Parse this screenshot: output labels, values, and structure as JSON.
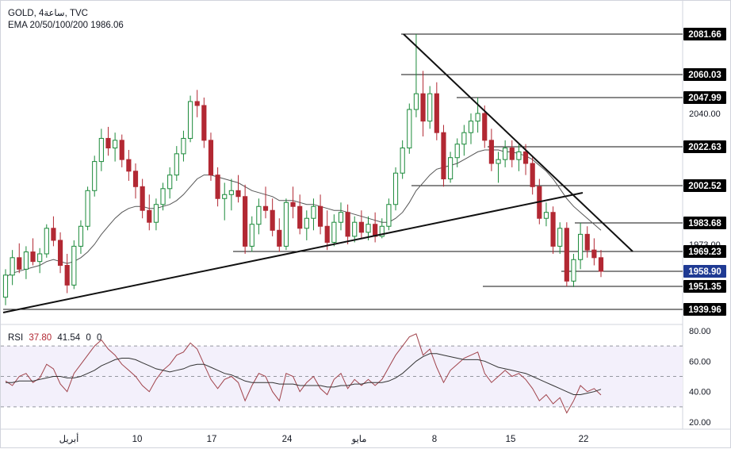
{
  "header": {
    "symbol_line": "GOLD, 4ساعة, TVC",
    "ema_line": "EMA 20/50/100/200  1986.06",
    "rsi_label": "RSI",
    "rsi_value_1": "37.80",
    "rsi_value_2": "41.54",
    "rsi_value_3": "0",
    "rsi_value_4": "0"
  },
  "colors": {
    "up": "#1b8a3a",
    "down": "#b22833",
    "ema": "#555555",
    "rsi": "#a0424a",
    "rsi_ma": "#333333",
    "trend": "#111111",
    "level": "#111111",
    "current_price_bg": "#1f3a93"
  },
  "chart_data": [
    {
      "type": "candlestick",
      "title": "",
      "price_axis_ticks": [
        "2040.00",
        "1973.00"
      ],
      "time_axis_labels": [
        "أبريل",
        "10",
        "17",
        "24",
        "مايو",
        "8",
        "15",
        "22"
      ],
      "ylim": [
        1935,
        2088
      ],
      "levels": [
        {
          "label": "2081.66",
          "value": 2081.66,
          "x_from": "مايو 5"
        },
        {
          "label": "2060.03",
          "value": 2060.03,
          "x_from": "مايو 5"
        },
        {
          "label": "2047.99",
          "value": 2047.99,
          "x_from": "مايو 9"
        },
        {
          "label": "2022.63",
          "value": 2022.63,
          "x_from": "مايو 11"
        },
        {
          "label": "2002.52",
          "value": 2002.52,
          "x_from": "مايو 7"
        },
        {
          "label": "1983.68",
          "value": 1983.68,
          "x_from": "مايو 20"
        },
        {
          "label": "1969.23",
          "value": 1969.23,
          "x_from": "أبريل 20"
        },
        {
          "label": "1958.90",
          "value": 1958.9,
          "x_from": "مايو 19",
          "current": true
        },
        {
          "label": "1951.35",
          "value": 1951.35,
          "x_from": "مايو 17"
        },
        {
          "label": "1939.96",
          "value": 1939.96,
          "x_from": "مارس 31"
        }
      ],
      "trendlines": [
        {
          "name": "descending",
          "from": {
            "x": "مايو 5",
            "y": 2081.66
          },
          "to": {
            "x": "مايو 24",
            "y": 1969.23
          }
        },
        {
          "name": "ascending",
          "from": {
            "x": "مارس 31",
            "y": 1940.8
          },
          "to": {
            "x": "مايو 21",
            "y": 1997.5
          }
        }
      ],
      "ohlc": [
        [
          1946.0,
          1960.0,
          1942.0,
          1957.0
        ],
        [
          1957.0,
          1970.0,
          1952.0,
          1966.0
        ],
        [
          1966.0,
          1973.5,
          1958.0,
          1960.0
        ],
        [
          1960.0,
          1972.0,
          1955.0,
          1969.0
        ],
        [
          1969.0,
          1976.0,
          1962.0,
          1964.0
        ],
        [
          1964.0,
          1971.0,
          1958.0,
          1968.0
        ],
        [
          1968.0,
          1983.0,
          1966.0,
          1981.0
        ],
        [
          1981.0,
          1987.0,
          1972.0,
          1975.0
        ],
        [
          1975.0,
          1979.0,
          1958.0,
          1962.0
        ],
        [
          1962.0,
          1968.0,
          1948.0,
          1952.0
        ],
        [
          1952.0,
          1975.0,
          1950.0,
          1972.0
        ],
        [
          1972.0,
          1985.0,
          1968.0,
          1982.0
        ],
        [
          1982.0,
          2002.0,
          1980.0,
          2000.0
        ],
        [
          2000.0,
          2018.0,
          1997.0,
          2015.0
        ],
        [
          2015.0,
          2032.0,
          2010.0,
          2027.0
        ],
        [
          2027.0,
          2033.0,
          2018.0,
          2022.0
        ],
        [
          2022.0,
          2030.0,
          2015.0,
          2026.0
        ],
        [
          2026.0,
          2029.0,
          2012.0,
          2016.0
        ],
        [
          2016.0,
          2021.0,
          2005.0,
          2010.0
        ],
        [
          2010.0,
          2014.0,
          1996.0,
          2002.0
        ],
        [
          2002.0,
          2006.0,
          1986.0,
          1990.0
        ],
        [
          1990.0,
          1998.0,
          1980.0,
          1984.0
        ],
        [
          1984.0,
          1996.0,
          1980.0,
          1993.0
        ],
        [
          1993.0,
          2004.0,
          1990.0,
          2001.0
        ],
        [
          2001.0,
          2012.0,
          1996.0,
          2008.0
        ],
        [
          2008.0,
          2023.0,
          2005.0,
          2019.0
        ],
        [
          2019.0,
          2031.0,
          2015.0,
          2027.0
        ],
        [
          2027.0,
          2049.0,
          2025.0,
          2046.0
        ],
        [
          2046.0,
          2052.0,
          2038.0,
          2044.0
        ],
        [
          2044.0,
          2048.0,
          2022.0,
          2026.0
        ],
        [
          2026.0,
          2030.0,
          2005.0,
          2008.0
        ],
        [
          2008.0,
          2012.0,
          1992.0,
          1996.0
        ],
        [
          1996.0,
          2004.0,
          1985.0,
          1998.0
        ],
        [
          1998.0,
          2006.0,
          1990.0,
          2000.0
        ],
        [
          2000.0,
          2008.0,
          1994.0,
          1997.0
        ],
        [
          1997.0,
          2003.0,
          1968.0,
          1972.0
        ],
        [
          1972.0,
          1987.0,
          1969.0,
          1983.0
        ],
        [
          1983.0,
          1996.0,
          1978.0,
          1992.0
        ],
        [
          1992.0,
          2002.0,
          1986.0,
          1990.0
        ],
        [
          1990.0,
          1996.0,
          1977.0,
          1980.0
        ],
        [
          1980.0,
          1986.0,
          1969.0,
          1972.0
        ],
        [
          1972.0,
          1996.0,
          1970.0,
          1994.0
        ],
        [
          1994.0,
          2002.0,
          1986.0,
          1992.0
        ],
        [
          1992.0,
          1998.0,
          1978.0,
          1981.0
        ],
        [
          1981.0,
          1990.0,
          1975.0,
          1986.0
        ],
        [
          1986.0,
          1996.0,
          1980.0,
          1992.0
        ],
        [
          1992.0,
          1998.0,
          1978.0,
          1982.0
        ],
        [
          1982.0,
          1990.0,
          1970.0,
          1974.0
        ],
        [
          1974.0,
          1988.0,
          1972.0,
          1984.0
        ],
        [
          1984.0,
          1994.0,
          1980.0,
          1989.0
        ],
        [
          1989.0,
          1993.0,
          1973.0,
          1977.0
        ],
        [
          1977.0,
          1987.0,
          1974.0,
          1984.0
        ],
        [
          1984.0,
          1990.0,
          1976.0,
          1979.0
        ],
        [
          1979.0,
          1987.0,
          1975.0,
          1983.0
        ],
        [
          1983.0,
          1989.0,
          1974.0,
          1977.0
        ],
        [
          1977.0,
          1986.0,
          1976.0,
          1982.0
        ],
        [
          1982.0,
          1996.0,
          1980.0,
          1993.0
        ],
        [
          1993.0,
          2012.0,
          1990.0,
          2009.0
        ],
        [
          2009.0,
          2026.0,
          2006.0,
          2022.0
        ],
        [
          2022.0,
          2045.0,
          2019.0,
          2042.0
        ],
        [
          2042.0,
          2081.66,
          2038.0,
          2050.0
        ],
        [
          2050.0,
          2062.0,
          2028.0,
          2036.0
        ],
        [
          2036.0,
          2054.0,
          2032.0,
          2050.0
        ],
        [
          2050.0,
          2056.0,
          2026.0,
          2030.0
        ],
        [
          2030.0,
          2034.0,
          2002.0,
          2006.0
        ],
        [
          2006.0,
          2020.0,
          2004.0,
          2017.0
        ],
        [
          2017.0,
          2027.0,
          2012.0,
          2024.0
        ],
        [
          2024.0,
          2034.0,
          2018.0,
          2030.0
        ],
        [
          2030.0,
          2040.0,
          2024.0,
          2036.0
        ],
        [
          2036.0,
          2047.99,
          2030.0,
          2040.0
        ],
        [
          2040.0,
          2044.0,
          2022.0,
          2026.0
        ],
        [
          2026.0,
          2032.0,
          2010.0,
          2014.0
        ],
        [
          2014.0,
          2020.0,
          2004.0,
          2016.0
        ],
        [
          2016.0,
          2026.0,
          2012.0,
          2022.0
        ],
        [
          2022.0,
          2026.0,
          2012.0,
          2016.0
        ],
        [
          2016.0,
          2024.0,
          2010.0,
          2020.0
        ],
        [
          2020.0,
          2024.0,
          2008.0,
          2014.0
        ],
        [
          2014.0,
          2018.0,
          1998.0,
          2002.0
        ],
        [
          2002.0,
          2006.0,
          1983.0,
          1986.0
        ],
        [
          1986.0,
          1994.0,
          1982.0,
          1989.0
        ],
        [
          1989.0,
          1992.0,
          1968.0,
          1972.0
        ],
        [
          1972.0,
          1984.0,
          1968.0,
          1981.0
        ],
        [
          1981.0,
          1984.0,
          1951.35,
          1954.0
        ],
        [
          1954.0,
          1968.0,
          1951.0,
          1965.0
        ],
        [
          1965.0,
          1983.68,
          1960.0,
          1978.0
        ],
        [
          1978.0,
          1982.0,
          1966.0,
          1970.0
        ],
        [
          1970.0,
          1976.0,
          1962.0,
          1966.0
        ],
        [
          1966.0,
          1970.0,
          1956.0,
          1958.9
        ]
      ],
      "ema": [
        1956,
        1958,
        1959,
        1960,
        1961,
        1962,
        1964,
        1965,
        1964,
        1963,
        1964,
        1966,
        1969,
        1973,
        1978,
        1982,
        1986,
        1989,
        1991,
        1992,
        1992,
        1991,
        1991,
        1992,
        1993,
        1995,
        1998,
        2002,
        2006,
        2008,
        2008,
        2007,
        2006,
        2005,
        2004,
        2002,
        2000,
        1999,
        1998,
        1997,
        1995,
        1995,
        1995,
        1994,
        1993,
        1993,
        1992,
        1991,
        1990,
        1990,
        1989,
        1988,
        1987,
        1986,
        1985,
        1984,
        1984,
        1986,
        1989,
        1994,
        2000,
        2004,
        2008,
        2011,
        2012,
        2013,
        2014,
        2016,
        2018,
        2020,
        2021,
        2021,
        2021,
        2020,
        2020,
        2019,
        2018,
        2016,
        2013,
        2010,
        2006,
        2001,
        1996,
        1992,
        1989,
        1986,
        1983,
        1980
      ],
      "rsi_ticks": [
        "80.00",
        "60.00",
        "40.00",
        "20.00"
      ],
      "rsi_ylim": [
        17,
        84
      ],
      "rsi": [
        47,
        44,
        50,
        52,
        46,
        49,
        58,
        55,
        45,
        40,
        52,
        58,
        64,
        70,
        74,
        68,
        64,
        58,
        54,
        50,
        44,
        40,
        48,
        54,
        58,
        64,
        66,
        72,
        68,
        58,
        48,
        42,
        48,
        50,
        46,
        34,
        44,
        52,
        50,
        40,
        34,
        52,
        50,
        40,
        46,
        50,
        42,
        38,
        48,
        52,
        42,
        48,
        44,
        48,
        44,
        48,
        56,
        64,
        70,
        76,
        78,
        64,
        68,
        56,
        46,
        54,
        58,
        62,
        64,
        66,
        52,
        46,
        50,
        54,
        50,
        52,
        48,
        42,
        34,
        38,
        32,
        36,
        26,
        34,
        44,
        40,
        42,
        37.8
      ],
      "rsi_ma": [
        46,
        46,
        47,
        47,
        47,
        48,
        49,
        50,
        50,
        49,
        49,
        50,
        52,
        54,
        57,
        59,
        61,
        62,
        62,
        61,
        59,
        57,
        55,
        54,
        53,
        54,
        55,
        57,
        58,
        58,
        56,
        54,
        52,
        51,
        49,
        47,
        46,
        46,
        46,
        46,
        45,
        45,
        45,
        44,
        44,
        44,
        44,
        43,
        43,
        44,
        44,
        45,
        45,
        46,
        46,
        46,
        47,
        49,
        52,
        56,
        60,
        63,
        65,
        65,
        64,
        63,
        62,
        61,
        61,
        61,
        60,
        58,
        56,
        55,
        54,
        53,
        52,
        50,
        48,
        46,
        44,
        42,
        40,
        38,
        38,
        39,
        40,
        41.54
      ]
    }
  ]
}
